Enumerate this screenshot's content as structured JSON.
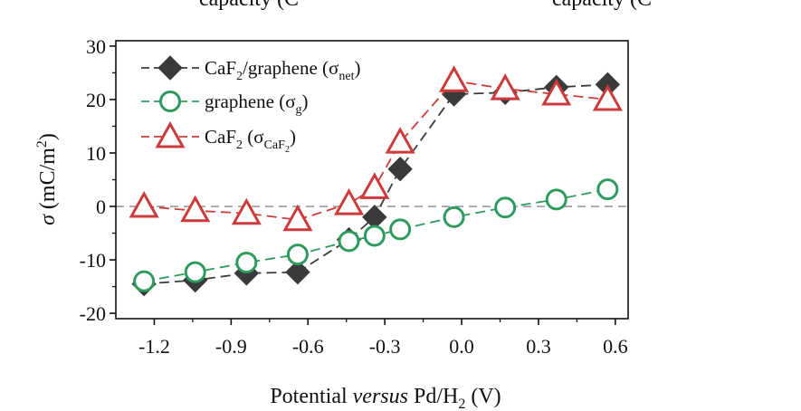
{
  "chart_data": {
    "type": "line",
    "top_text": "capacity (C",
    "top_text_right": "capacity (C",
    "xlabel": {
      "pre": "Potential ",
      "italic": "versus",
      "post": " Pd/H",
      "sub": "2",
      "tail": " (V)"
    },
    "ylabel": {
      "sigma": "σ",
      "pre": " (mC/m",
      "sup": "2",
      "post": ")"
    },
    "xlim": [
      -1.35,
      0.65
    ],
    "ylim": [
      -21,
      31
    ],
    "x_ticks": [
      -1.2,
      -0.9,
      -0.6,
      -0.3,
      0.0,
      0.3,
      0.6
    ],
    "x_tick_labels": [
      "-1.2",
      "-0.9",
      "-0.6",
      "-0.3",
      "0.0",
      "0.3",
      "0.6"
    ],
    "y_ticks": [
      -20,
      -10,
      0,
      10,
      20,
      30
    ],
    "y_tick_labels": [
      "-20",
      "-10",
      "0",
      "10",
      "20",
      "30"
    ],
    "reference_line_y": 0,
    "legend_position": "top-left",
    "colors": {
      "net": "#3a3a3a",
      "graphene": "#2e9a5e",
      "caf2": "#cc3b3b",
      "zero_line": "#888888"
    },
    "series": [
      {
        "key": "net",
        "legend": {
          "base": "CaF",
          "sub1": "2",
          "mid": "/graphene (σ",
          "sub2": "net",
          "end": ")"
        },
        "marker": "diamond",
        "x": [
          -1.24,
          -1.04,
          -0.84,
          -0.64,
          -0.44,
          -0.34,
          -0.24,
          -0.03,
          0.17,
          0.37,
          0.57
        ],
        "y": [
          -14.5,
          -13.8,
          -12.5,
          -12.3,
          -6.2,
          -2.0,
          7.0,
          21.0,
          21.3,
          22.3,
          22.8
        ]
      },
      {
        "key": "graphene",
        "legend": {
          "base": "graphene (σ",
          "sub1": "g",
          "end": ")"
        },
        "marker": "circle",
        "x": [
          -1.24,
          -1.04,
          -0.84,
          -0.64,
          -0.44,
          -0.34,
          -0.24,
          -0.03,
          0.17,
          0.37,
          0.57
        ],
        "y": [
          -14.0,
          -12.3,
          -10.5,
          -9.0,
          -6.5,
          -5.5,
          -4.3,
          -2.0,
          -0.2,
          1.3,
          3.2
        ]
      },
      {
        "key": "caf2",
        "legend": {
          "base": "CaF",
          "sub1": "2",
          "mid": " (σ",
          "sub2": "CaF",
          "sub3": "2",
          "end": ")"
        },
        "marker": "triangle",
        "x": [
          -1.24,
          -1.04,
          -0.84,
          -0.64,
          -0.44,
          -0.34,
          -0.24,
          -0.03,
          0.17,
          0.37,
          0.57
        ],
        "y": [
          0.0,
          -0.8,
          -1.3,
          -2.5,
          0.5,
          3.5,
          12.0,
          23.5,
          22.0,
          21.0,
          20.0
        ]
      }
    ]
  }
}
